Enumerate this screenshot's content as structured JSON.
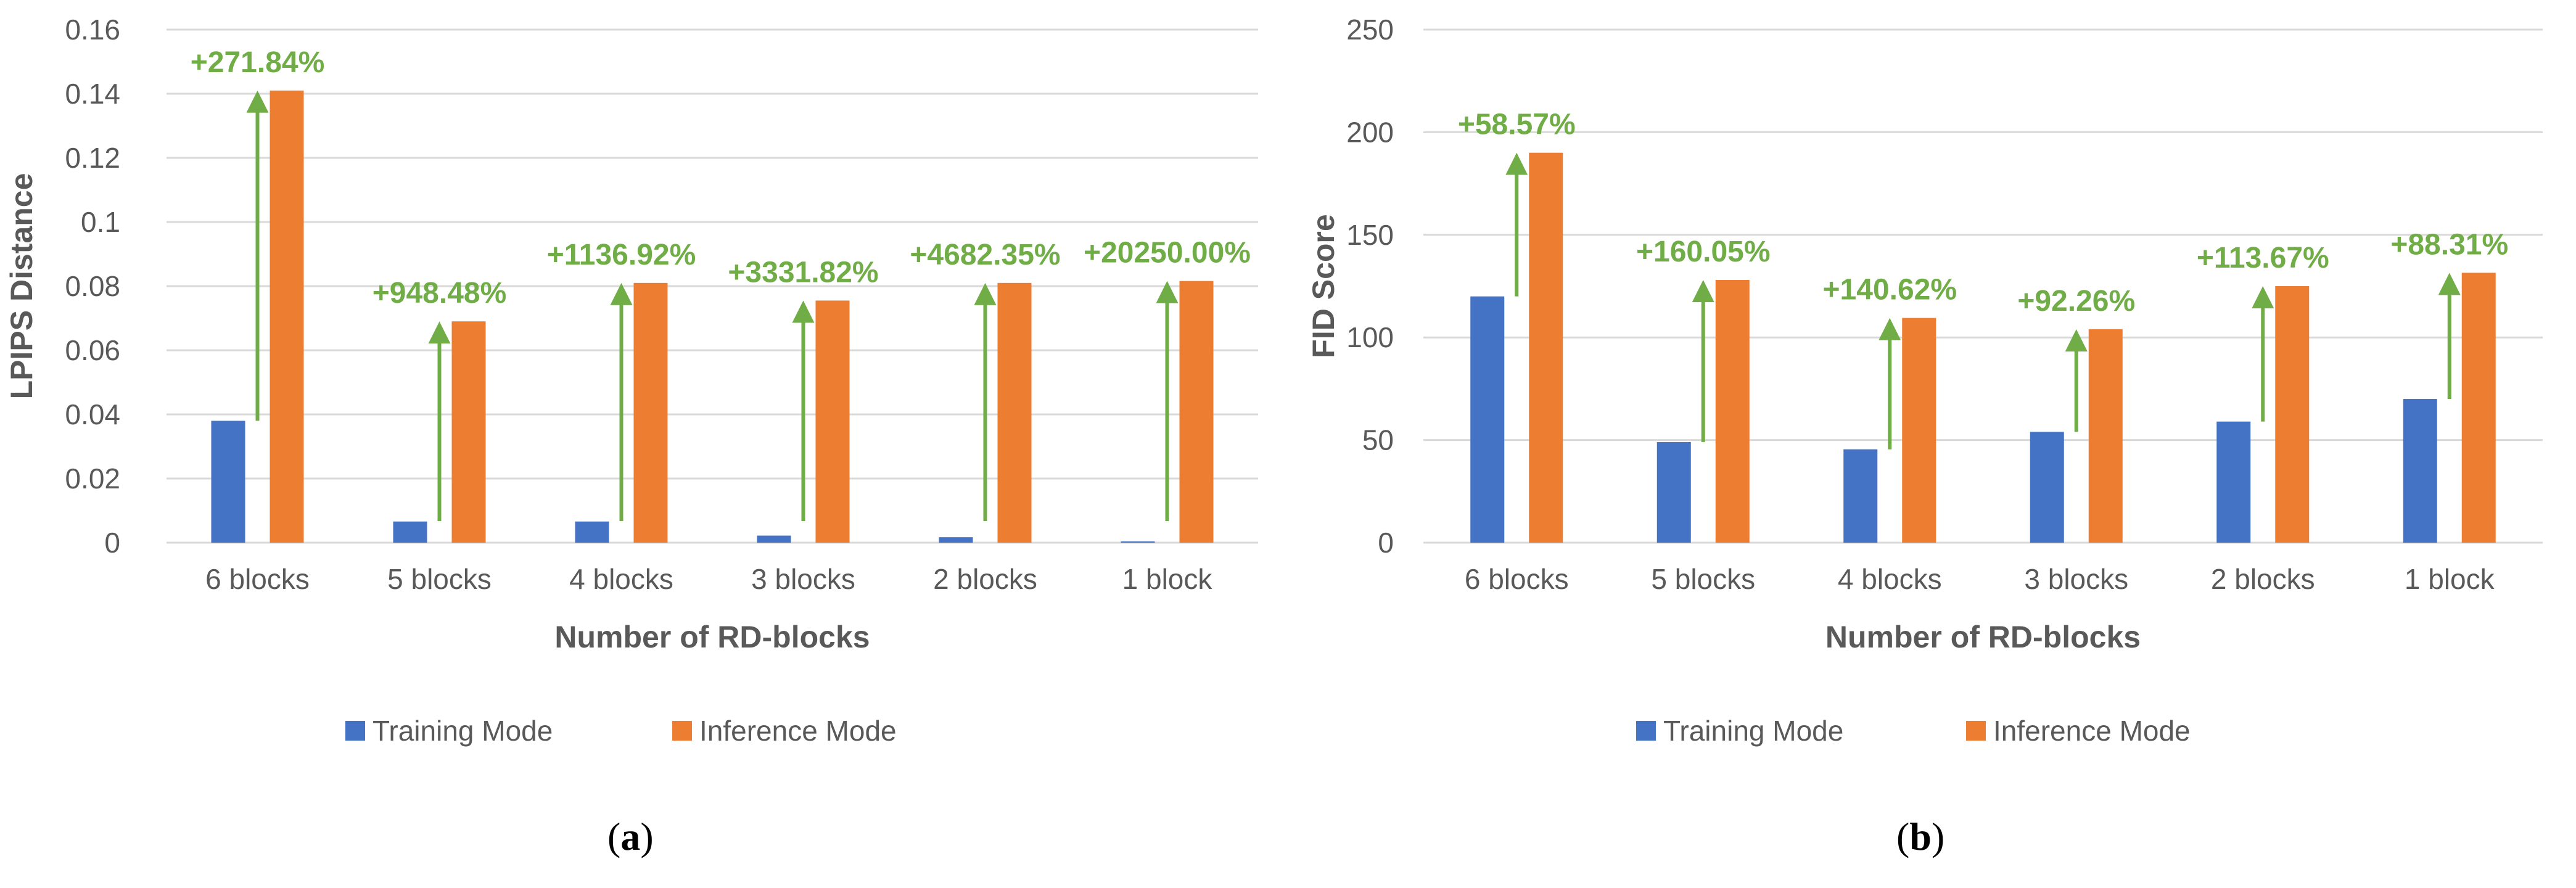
{
  "chart_data": [
    {
      "type": "bar",
      "panel_label": "(a)",
      "categories": [
        "6 blocks",
        "5 blocks",
        "4 blocks",
        "3 blocks",
        "2 blocks",
        "1 block"
      ],
      "series": [
        {
          "name": "Training Mode",
          "color": "#4472C4",
          "values": [
            0.038,
            0.0066,
            0.0066,
            0.0022,
            0.0017,
            0.0004
          ]
        },
        {
          "name": "Inference Mode",
          "color": "#ED7D31",
          "values": [
            0.141,
            0.069,
            0.081,
            0.0755,
            0.081,
            0.0816
          ]
        }
      ],
      "annotations": [
        "+271.84%",
        "+948.48%",
        "+1136.92%",
        "+3331.82%",
        "+4682.35%",
        "+20250.00%"
      ],
      "ylabel": "LPIPS Distance",
      "xlabel": "Number of RD-blocks",
      "ylim": [
        0,
        0.16
      ],
      "yticks": [
        "0",
        "0.02",
        "0.04",
        "0.06",
        "0.08",
        "0.1",
        "0.12",
        "0.14",
        "0.16"
      ],
      "grid": true,
      "legend": "bottom"
    },
    {
      "type": "bar",
      "panel_label": "(b)",
      "categories": [
        "6 blocks",
        "5 blocks",
        "4 blocks",
        "3 blocks",
        "2 blocks",
        "1 block"
      ],
      "series": [
        {
          "name": "Training Mode",
          "color": "#4472C4",
          "values": [
            120,
            49,
            45.5,
            54,
            59,
            70
          ]
        },
        {
          "name": "Inference Mode",
          "color": "#ED7D31",
          "values": [
            190,
            128,
            109.5,
            104,
            125,
            131.5
          ]
        }
      ],
      "annotations": [
        "+58.57%",
        "+160.05%",
        "+140.62%",
        "+92.26%",
        "+113.67%",
        "+88.31%"
      ],
      "ylabel": "FID Score",
      "xlabel": "Number of RD-blocks",
      "ylim": [
        0,
        250
      ],
      "yticks": [
        "0",
        "50",
        "100",
        "150",
        "200",
        "250"
      ],
      "grid": true,
      "legend": "bottom"
    }
  ],
  "colors": {
    "arrow": "#70AD47",
    "grid": "#D9D9D9",
    "text": "#595959"
  }
}
